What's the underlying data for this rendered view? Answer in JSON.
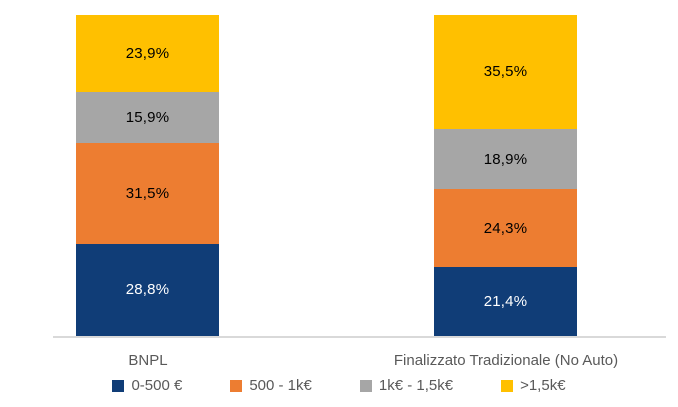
{
  "chart_data": {
    "type": "bar",
    "subtype": "100-percent-stacked-column",
    "title": "",
    "categories": [
      "BNPL",
      "Finalizzato Tradizionale (No Auto)"
    ],
    "series": [
      {
        "name": "0-500 €",
        "color": "#103D77",
        "label_color": "#FFFFFF",
        "values": [
          28.8,
          21.4
        ],
        "labels": [
          "28,8%",
          "21,4%"
        ]
      },
      {
        "name": "500 - 1k€",
        "color": "#ED7D31",
        "label_color": "#000000",
        "values": [
          31.5,
          24.3
        ],
        "labels": [
          "31,5%",
          "24,3%"
        ]
      },
      {
        "name": "1k€ - 1,5k€",
        "color": "#A6A6A6",
        "label_color": "#000000",
        "values": [
          15.9,
          18.9
        ],
        "labels": [
          "15,9%",
          "18,9%"
        ]
      },
      {
        "name": ">1,5k€",
        "color": "#FFC000",
        "label_color": "#000000",
        "values": [
          23.9,
          35.5
        ],
        "labels": [
          "23,9%",
          "35,5%"
        ]
      }
    ],
    "stack_order_top_to_bottom": [
      ">1,5k€",
      "1k€ - 1,5k€",
      "500 - 1k€",
      "0-500 €"
    ],
    "legend_position": "bottom",
    "grid": false,
    "ylim": [
      0,
      100
    ],
    "axis_line_color": "#D9D9D9",
    "category_text_color": "#595959",
    "legend_text_color": "#595959",
    "background": "#FFFFFF"
  }
}
